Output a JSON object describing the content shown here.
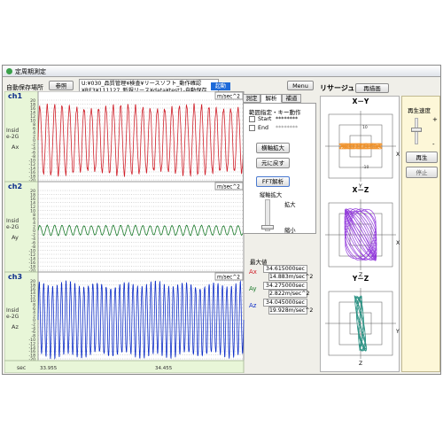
{
  "window": {
    "title": "定周期測定"
  },
  "toolbar": {
    "save_location_label": "自動保存場所",
    "browse_button": "参照",
    "path_line1": "U:¥030_品質管理¥検査¥リースソフト_動作確認",
    "path_line2": "¥RF3¥111127_新規リース¥data¥test1-自動保存",
    "status_badge": "起動",
    "menu_button": "Menu"
  },
  "channels": [
    {
      "name": "ch1",
      "unit": "m/sec^2",
      "side_label_1": "Insid",
      "side_label_2": "e-2G",
      "axis_name": "Ax",
      "color": "#d0202a",
      "amplitude": 0.82,
      "cycles": 28,
      "ticks": [
        "20",
        "18",
        "16",
        "14",
        "12",
        "10",
        "8",
        "6",
        "4",
        "2",
        "0",
        "-2",
        "-4",
        "-6",
        "-8",
        "-10",
        "-12",
        "-14",
        "-16",
        "-18",
        "-20"
      ]
    },
    {
      "name": "ch2",
      "unit": "m/sec^2",
      "side_label_1": "Insid",
      "side_label_2": "e-2G",
      "axis_name": "Ay",
      "color": "#1a7a2a",
      "amplitude": 0.12,
      "cycles": 28,
      "ticks": [
        "20",
        "18",
        "16",
        "14",
        "12",
        "10",
        "8",
        "6",
        "4",
        "2",
        "0",
        "-2",
        "-4",
        "-6",
        "-8",
        "-10",
        "-12",
        "-14",
        "-16",
        "-18",
        "-20"
      ]
    },
    {
      "name": "ch3",
      "unit": "m/sec^2",
      "side_label_1": "Insid",
      "side_label_2": "e-2G",
      "axis_name": "Az",
      "color": "#1030c8",
      "amplitude": 0.9,
      "cycles": 46,
      "ticks": [
        "20",
        "18",
        "16",
        "14",
        "12",
        "10",
        "8",
        "6",
        "4",
        "2",
        "0",
        "-2",
        "-4",
        "-6",
        "-8",
        "-10",
        "-12",
        "-14",
        "-16",
        "-18",
        "-20"
      ]
    }
  ],
  "time_axis": {
    "unit": "sec",
    "start": "33.955",
    "mid": "34.455"
  },
  "tabs": {
    "measure": "測定",
    "analysis": "解析",
    "settings": "補道"
  },
  "range_panel": {
    "title": "範囲指定・キー動作",
    "start_label": "Start",
    "start_value": "********",
    "end_label": "End",
    "end_value": "********",
    "zoom_h_button": "横軸拡大",
    "restore_button": "元に戻す",
    "fft_button": "FFT解析",
    "zoom_v_label": "縦軸拡大",
    "enlarge_label": "拡大",
    "shrink_label": "縮小"
  },
  "max_panel": {
    "title": "最大値",
    "rows": [
      {
        "axis": "Ax",
        "color": "#d0202a",
        "time": "34.615000sec",
        "value": "14.883m/sec^2"
      },
      {
        "axis": "Ay",
        "color": "#1a7a2a",
        "time": "34.275000sec",
        "value": "2.822m/sec^2"
      },
      {
        "axis": "Az",
        "color": "#1030c8",
        "time": "34.045000sec",
        "value": "19.928m/sec^2"
      }
    ]
  },
  "lissajous": {
    "title": "リサージュ",
    "redraw_button": "再描画",
    "plots": [
      {
        "title": "X－Y",
        "h_axis": "X",
        "v_axis": "Y",
        "color": "#f08a1a",
        "tick_pos": "10",
        "tick_neg": "-10"
      },
      {
        "title": "X－Z",
        "h_axis": "X",
        "v_axis": "Z",
        "color": "#8a2ad8"
      },
      {
        "title": "Y－Z",
        "h_axis": "Y",
        "v_axis": "Z",
        "color": "#1a8a7a"
      }
    ]
  },
  "playback": {
    "speed_label": "再生速度",
    "plus": "+",
    "minus": "-",
    "play_button": "再生",
    "stop_button": "停止"
  }
}
